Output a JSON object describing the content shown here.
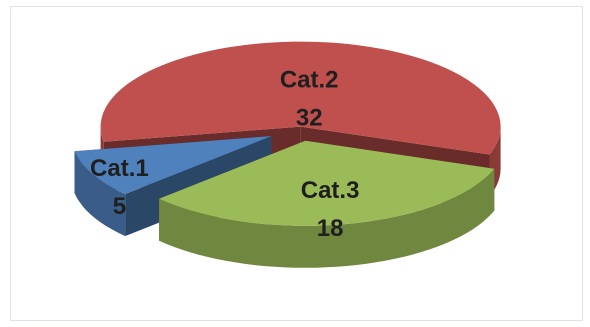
{
  "chart_data": {
    "type": "pie",
    "categories": [
      "Cat.1",
      "Cat.2",
      "Cat.3"
    ],
    "values": [
      5,
      32,
      18
    ],
    "colors": [
      "#4f81bd",
      "#c0504d",
      "#9bbb59"
    ]
  }
}
